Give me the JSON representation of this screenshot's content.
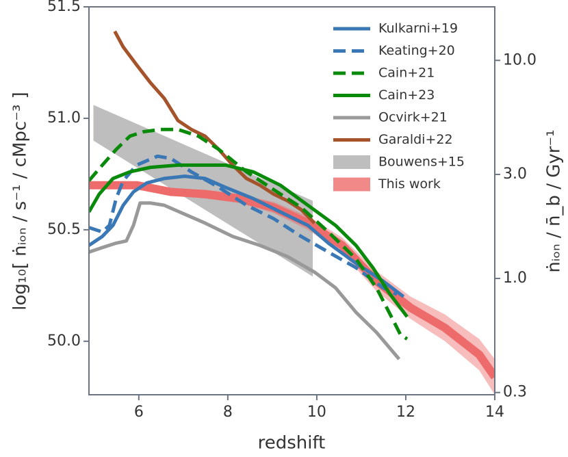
{
  "chart_data": {
    "type": "line",
    "xlabel": "redshift",
    "ylabel": "log₁₀[ ṅᵢₒₙ / s⁻¹ / cMpc⁻³ ]",
    "y2label": "ṅᵢₒₙ / n̄_b / Gyr⁻¹",
    "xlim": [
      4.88,
      14
    ],
    "xticks": [
      6,
      8,
      10,
      12,
      14
    ],
    "ylim": [
      49.76,
      51.5
    ],
    "yticks": [
      {
        "value": 50,
        "label": "50.0"
      },
      50.5,
      {
        "value": 51,
        "label": "51.0"
      },
      51.5
    ],
    "y2lim": [
      0.293,
      17.6
    ],
    "y2log": true,
    "y2ticks": [
      0.3,
      {
        "value": 1,
        "label": "1.0"
      },
      {
        "value": 3,
        "label": "3.0"
      },
      {
        "value": 10,
        "label": "10.0"
      }
    ],
    "legend": "upper right",
    "series": [
      {
        "name": "Kulkarni+19",
        "color": "#3a78b5",
        "linestyle": "solid",
        "x": [
          4.88,
          5.18,
          5.42,
          5.65,
          5.88,
          6.18,
          6.57,
          7.03,
          7.49,
          7.95,
          8.57,
          9.18,
          9.8,
          10.26,
          10.88,
          11.49,
          11.95
        ],
        "values": [
          50.43,
          50.47,
          50.52,
          50.61,
          50.67,
          50.71,
          50.73,
          50.74,
          50.73,
          50.69,
          50.64,
          50.58,
          50.52,
          50.44,
          50.35,
          50.27,
          50.2
        ]
      },
      {
        "name": "Keating+20",
        "color": "#3a78b5",
        "linestyle": "dashed",
        "x": [
          4.88,
          5.18,
          5.34,
          5.49,
          5.65,
          5.95,
          6.42,
          6.72,
          7.18,
          7.8,
          8.42,
          9.03,
          9.65,
          10.26,
          10.88,
          11.49,
          11.8
        ],
        "values": [
          50.51,
          50.49,
          50.52,
          50.64,
          50.72,
          50.79,
          50.83,
          50.82,
          50.76,
          50.69,
          50.61,
          50.55,
          50.47,
          50.4,
          50.33,
          50.24,
          50.21
        ]
      },
      {
        "name": "Cain+21",
        "color": "#0a8a0a",
        "linestyle": "dashed",
        "x": [
          4.88,
          5.18,
          5.49,
          5.8,
          6.11,
          6.49,
          6.88,
          7.34,
          7.8,
          8.42,
          9.03,
          9.65,
          10.26,
          10.88,
          11.34,
          11.65,
          11.88,
          12.03
        ],
        "values": [
          50.72,
          50.79,
          50.86,
          50.92,
          50.94,
          50.95,
          50.95,
          50.92,
          50.86,
          50.76,
          50.68,
          50.6,
          50.49,
          50.37,
          50.24,
          50.12,
          50.03,
          50.01
        ]
      },
      {
        "name": "Cain+23",
        "color": "#0a8a0a",
        "linestyle": "solid",
        "x": [
          4.88,
          5.11,
          5.42,
          5.8,
          6.26,
          6.88,
          7.49,
          7.95,
          8.57,
          9.18,
          9.8,
          10.42,
          10.88,
          11.26,
          11.65,
          12.03
        ],
        "values": [
          50.58,
          50.66,
          50.73,
          50.76,
          50.78,
          50.79,
          50.79,
          50.79,
          50.76,
          50.7,
          50.61,
          50.52,
          50.43,
          50.33,
          50.21,
          50.11
        ]
      },
      {
        "name": "Ocvirk+21",
        "color": "#999999",
        "linestyle": "solid",
        "x": [
          4.88,
          5.18,
          5.49,
          5.72,
          5.88,
          6.03,
          6.26,
          6.57,
          7.03,
          7.49,
          8.11,
          8.72,
          9.34,
          9.95,
          10.42,
          10.88,
          11.34,
          11.85
        ],
        "values": [
          50.4,
          50.42,
          50.44,
          50.45,
          50.52,
          50.62,
          50.62,
          50.61,
          50.57,
          50.53,
          50.47,
          50.43,
          50.38,
          50.31,
          50.24,
          50.13,
          50.04,
          49.92
        ]
      },
      {
        "name": "Garaldi+22",
        "color": "#a5532a",
        "linestyle": "solid",
        "x": [
          5.46,
          5.65,
          5.95,
          6.26,
          6.57,
          6.88,
          7.18,
          7.49,
          7.8,
          8.11,
          8.42,
          8.72,
          9.03,
          9.34,
          9.65,
          9.95
        ],
        "values": [
          51.39,
          51.32,
          51.24,
          51.16,
          51.09,
          50.99,
          50.95,
          50.92,
          50.86,
          50.79,
          50.73,
          50.7,
          50.66,
          50.63,
          50.59,
          50.53
        ]
      },
      {
        "name": "Bouwens+15",
        "color": "#bbbbbb",
        "linestyle": "band",
        "x": [
          4.98,
          9.91
        ],
        "lower": [
          50.9,
          50.29
        ],
        "upper": [
          51.06,
          50.63
        ]
      },
      {
        "name": "This work",
        "color": "#ee6b6b",
        "linestyle": "band-line",
        "x": [
          4.88,
          5.95,
          6.72,
          7.49,
          8.26,
          9.03,
          9.8,
          10.57,
          11.34,
          12.11,
          12.88,
          13.65,
          14
        ],
        "values": [
          50.7,
          50.7,
          50.67,
          50.66,
          50.64,
          50.6,
          50.53,
          50.43,
          50.27,
          50.15,
          50.06,
          49.94,
          49.84
        ],
        "lower": [
          50.685,
          50.685,
          50.655,
          50.64,
          50.62,
          50.575,
          50.5,
          50.395,
          50.225,
          50.1,
          50.0,
          49.87,
          49.76
        ],
        "upper": [
          50.715,
          50.715,
          50.685,
          50.68,
          50.66,
          50.625,
          50.56,
          50.465,
          50.315,
          50.2,
          50.12,
          50.01,
          49.92
        ]
      }
    ]
  }
}
